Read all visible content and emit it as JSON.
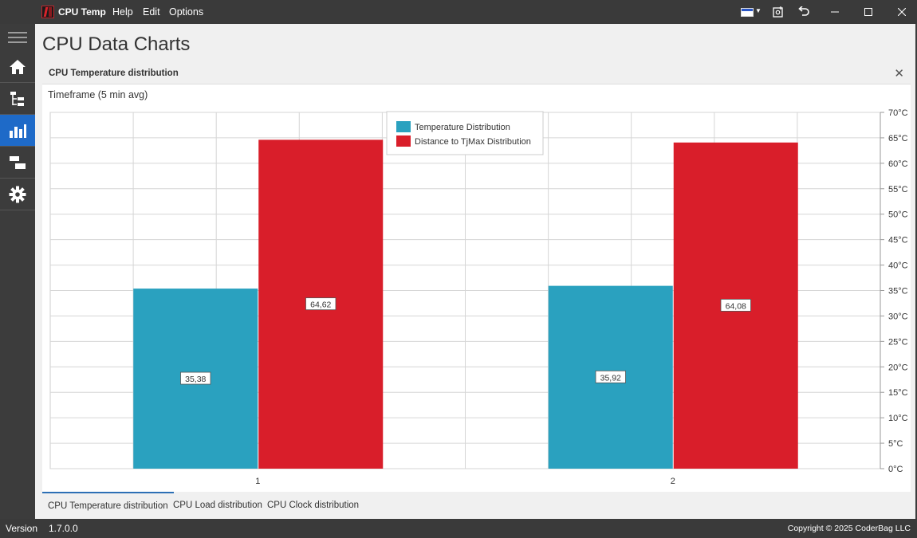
{
  "window": {
    "app_name": "CPU Temp",
    "menu": [
      "Help",
      "Edit",
      "Options"
    ]
  },
  "sidebar": {
    "items": [
      {
        "icon": "hamburger-menu-icon"
      },
      {
        "icon": "home-icon"
      },
      {
        "icon": "tree-view-icon"
      },
      {
        "icon": "bar-chart-icon",
        "active": true
      },
      {
        "icon": "layout-icon"
      },
      {
        "icon": "gear-icon"
      }
    ]
  },
  "page": {
    "title": "CPU Data Charts",
    "panel_title": "CPU Temperature distribution",
    "timeframe": "Timeframe (5 min avg)"
  },
  "chart_data": {
    "type": "bar",
    "categories": [
      "1",
      "2"
    ],
    "series": [
      {
        "name": "Temperature Distribution",
        "color": "#2aa1bf",
        "values": [
          35.38,
          35.92
        ],
        "labels": [
          "35,38",
          "35,92"
        ]
      },
      {
        "name": "Distance to TjMax Distribution",
        "color": "#d91e2a",
        "values": [
          64.62,
          64.08
        ],
        "labels": [
          "64,62",
          "64,08"
        ]
      }
    ],
    "ylim": [
      0,
      70
    ],
    "yticks": [
      "0°C",
      "5°C",
      "10°C",
      "15°C",
      "20°C",
      "25°C",
      "30°C",
      "35°C",
      "40°C",
      "45°C",
      "50°C",
      "55°C",
      "60°C",
      "65°C",
      "70°C"
    ],
    "y_axis_position": "right",
    "grid": true,
    "legend_position": "top-center"
  },
  "tabs": [
    {
      "label": "CPU Temperature distribution",
      "active": true
    },
    {
      "label": "CPU Load distribution",
      "active": false
    },
    {
      "label": "CPU Clock distribution",
      "active": false
    }
  ],
  "status": {
    "version_label": "Version",
    "version": "1.7.0.0",
    "copyright": "Copyright © 2025 CoderBag LLC"
  }
}
